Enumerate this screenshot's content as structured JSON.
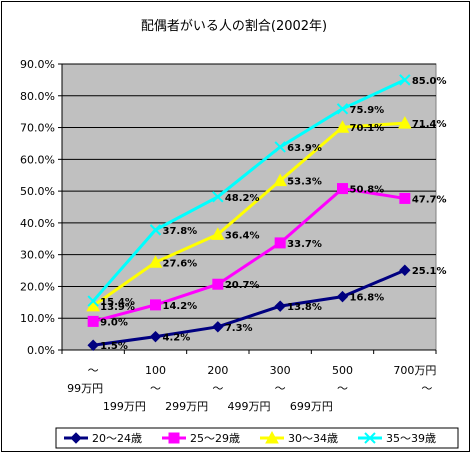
{
  "chart_data": {
    "type": "line",
    "title": "配偶者がいる人の割合(2002年)",
    "categories": [
      [
        "～",
        "99万円"
      ],
      [
        "100",
        "～",
        "199万円"
      ],
      [
        "200",
        "～",
        "299万円"
      ],
      [
        "300",
        "～",
        "499万円"
      ],
      [
        "500",
        "～",
        "699万円"
      ],
      [
        "700万円",
        "～"
      ]
    ],
    "yticks": [
      "0.0%",
      "10.0%",
      "20.0%",
      "30.0%",
      "40.0%",
      "50.0%",
      "60.0%",
      "70.0%",
      "80.0%",
      "90.0%"
    ],
    "ylim": [
      0,
      90
    ],
    "grid": true,
    "legend_position": "bottom",
    "plot_background": "#c0c0c0",
    "series": [
      {
        "name": "20～24歳",
        "color": "#000080",
        "marker": "diamond",
        "values": [
          1.5,
          4.2,
          7.3,
          13.8,
          16.8,
          25.1
        ],
        "labels": [
          "1.5%",
          "4.2%",
          "7.3%",
          "13.8%",
          "16.8%",
          "25.1%"
        ]
      },
      {
        "name": "25～29歳",
        "color": "#ff00ff",
        "marker": "square",
        "values": [
          9.0,
          14.2,
          20.7,
          33.7,
          50.8,
          47.7
        ],
        "labels": [
          "9.0%",
          "14.2%",
          "20.7%",
          "33.7%",
          "50.8%",
          "47.7%"
        ]
      },
      {
        "name": "30～34歳",
        "color": "#ffff00",
        "marker": "triangle",
        "values": [
          13.9,
          27.6,
          36.4,
          53.3,
          70.1,
          71.4
        ],
        "labels": [
          "13.9%",
          "27.6%",
          "36.4%",
          "53.3%",
          "70.1%",
          "71.4%"
        ]
      },
      {
        "name": "35～39歳",
        "color": "#00ffff",
        "marker": "x",
        "values": [
          15.4,
          37.8,
          48.2,
          63.9,
          75.9,
          85.0
        ],
        "labels": [
          "15.4%",
          "37.8%",
          "48.2%",
          "63.9%",
          "75.9%",
          "85.0%"
        ]
      }
    ]
  }
}
